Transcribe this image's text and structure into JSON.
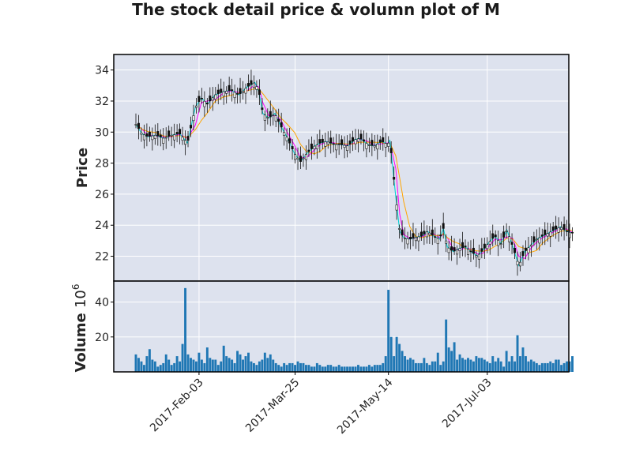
{
  "chart_data": {
    "type": "candlestick",
    "title": "The stock detail price & volumn plot of M",
    "price_panel": {
      "ylabel": "Price",
      "ylim": [
        20.4,
        35.0
      ],
      "yticks": [
        22,
        24,
        26,
        28,
        30,
        32,
        34
      ],
      "moving_average_colors": [
        "#ff00ff",
        "#ffa500",
        "#00ced1"
      ],
      "series_close": [
        [
          0,
          30.5
        ],
        [
          3,
          29.9
        ],
        [
          6,
          29.7
        ],
        [
          10,
          29.8
        ],
        [
          14,
          29.6
        ],
        [
          18,
          29.8
        ],
        [
          22,
          29.9
        ],
        [
          26,
          29.3
        ],
        [
          30,
          31.6
        ],
        [
          33,
          32.2
        ],
        [
          36,
          31.8
        ],
        [
          40,
          32.4
        ],
        [
          44,
          32.6
        ],
        [
          48,
          32.7
        ],
        [
          52,
          32.4
        ],
        [
          56,
          32.9
        ],
        [
          60,
          33.2
        ],
        [
          62,
          32.6
        ],
        [
          64,
          31.2
        ],
        [
          67,
          30.9
        ],
        [
          70,
          31.2
        ],
        [
          73,
          30.4
        ],
        [
          76,
          29.7
        ],
        [
          80,
          28.6
        ],
        [
          83,
          28.1
        ],
        [
          86,
          28.6
        ],
        [
          90,
          29.1
        ],
        [
          93,
          29.3
        ],
        [
          96,
          29.4
        ],
        [
          100,
          29.2
        ],
        [
          103,
          29.2
        ],
        [
          107,
          29.1
        ],
        [
          110,
          29.5
        ],
        [
          113,
          29.6
        ],
        [
          117,
          29.2
        ],
        [
          120,
          29.1
        ],
        [
          124,
          29.4
        ],
        [
          127,
          29.2
        ],
        [
          128,
          29.5
        ],
        [
          131,
          25.8
        ],
        [
          133,
          23.6
        ],
        [
          135,
          23.2
        ],
        [
          138,
          23.1
        ],
        [
          141,
          23.2
        ],
        [
          144,
          23.3
        ],
        [
          147,
          23.6
        ],
        [
          150,
          23.3
        ],
        [
          153,
          23.1
        ],
        [
          155,
          23.8
        ],
        [
          157,
          22.6
        ],
        [
          160,
          22.3
        ],
        [
          163,
          22.5
        ],
        [
          166,
          22.6
        ],
        [
          169,
          22.3
        ],
        [
          172,
          22.0
        ],
        [
          175,
          22.4
        ],
        [
          178,
          22.9
        ],
        [
          181,
          23.3
        ],
        [
          184,
          22.8
        ],
        [
          187,
          23.7
        ],
        [
          190,
          22.6
        ],
        [
          193,
          21.4
        ],
        [
          196,
          22.3
        ],
        [
          199,
          22.7
        ],
        [
          202,
          23.1
        ],
        [
          205,
          23.3
        ],
        [
          208,
          23.5
        ],
        [
          211,
          23.7
        ],
        [
          214,
          23.9
        ],
        [
          217,
          23.6
        ],
        [
          220,
          23.5
        ]
      ]
    },
    "volume_panel": {
      "ylabel": "Volume",
      "exponent_label": "10",
      "exponent_power": "6",
      "ylim": [
        0,
        52
      ],
      "yticks": [
        20,
        40
      ],
      "bar_color": "#1f77b4",
      "values": [
        10,
        8,
        6,
        4,
        9,
        13,
        7,
        6,
        3,
        4,
        5,
        10,
        7,
        4,
        5,
        9,
        6,
        16,
        48,
        10,
        8,
        7,
        6,
        11,
        7,
        5,
        14,
        8,
        7,
        7,
        4,
        6,
        15,
        9,
        8,
        7,
        5,
        12,
        10,
        7,
        9,
        11,
        6,
        5,
        4,
        6,
        7,
        11,
        8,
        10,
        7,
        5,
        4,
        3,
        5,
        4,
        5,
        5,
        4,
        6,
        5,
        5,
        4,
        4,
        3,
        3,
        5,
        4,
        3,
        3,
        4,
        4,
        3,
        3,
        4,
        3,
        3,
        3,
        3,
        3,
        3,
        4,
        3,
        3,
        3,
        4,
        3,
        4,
        4,
        4,
        5,
        9,
        47,
        20,
        9,
        20,
        16,
        12,
        9,
        7,
        8,
        7,
        5,
        5,
        5,
        8,
        5,
        4,
        6,
        6,
        11,
        4,
        6,
        30,
        14,
        12,
        17,
        7,
        10,
        8,
        7,
        8,
        7,
        6,
        9,
        8,
        8,
        7,
        6,
        5,
        9,
        6,
        8,
        6,
        3,
        12,
        6,
        9,
        6,
        21,
        9,
        14,
        9,
        6,
        7,
        6,
        5,
        4,
        5,
        5,
        5,
        6,
        5,
        7,
        7,
        4,
        5,
        6,
        6,
        9
      ]
    },
    "x_ticks": [
      {
        "label": "2017-Feb-03",
        "index": 23
      },
      {
        "label": "2017-Mar-25",
        "index": 58
      },
      {
        "label": "2017-May-14",
        "index": 92
      },
      {
        "label": "2017-Jul-03",
        "index": 128
      }
    ]
  }
}
